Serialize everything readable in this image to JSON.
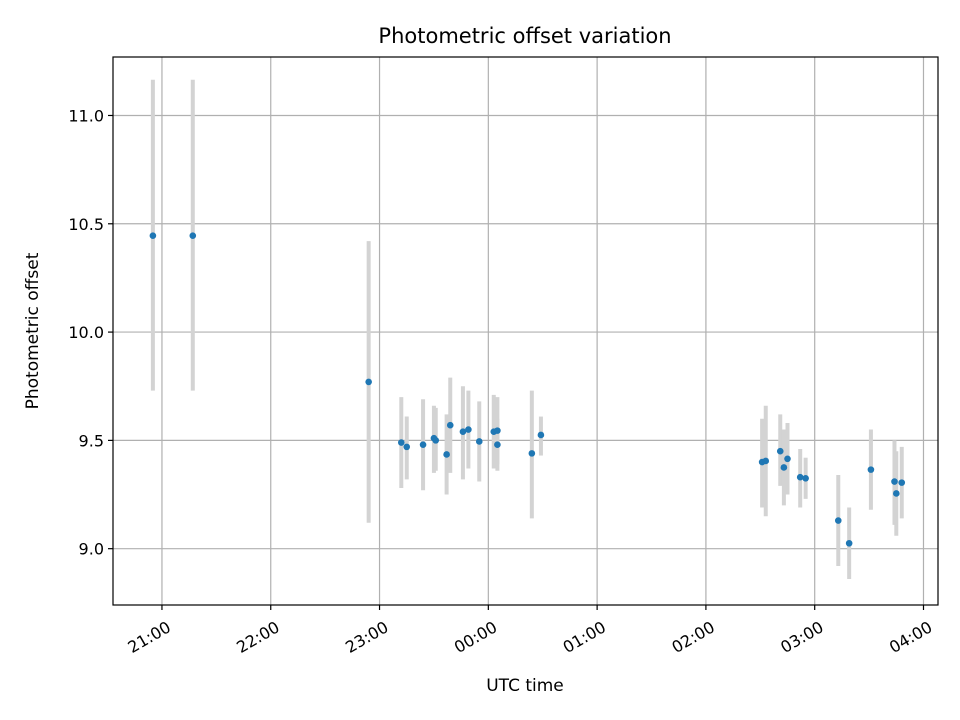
{
  "chart_data": {
    "type": "scatter",
    "title": "Photometric offset variation",
    "xlabel": "UTC time",
    "ylabel": "Photometric offset",
    "x_unit": "hours",
    "xlim": [
      "20:33",
      "04:08"
    ],
    "ylim": [
      8.74,
      11.27
    ],
    "grid": true,
    "x_ticks": [
      {
        "value": "21:00",
        "label": "21:00"
      },
      {
        "value": "22:00",
        "label": "22:00"
      },
      {
        "value": "23:00",
        "label": "23:00"
      },
      {
        "value": "00:00",
        "label": "00:00"
      },
      {
        "value": "01:00",
        "label": "01:00"
      },
      {
        "value": "02:00",
        "label": "02:00"
      },
      {
        "value": "03:00",
        "label": "03:00"
      },
      {
        "value": "04:00",
        "label": "04:00"
      }
    ],
    "y_ticks": [
      {
        "value": 9.0,
        "label": "9.0"
      },
      {
        "value": 9.5,
        "label": "9.5"
      },
      {
        "value": 10.0,
        "label": "10.0"
      },
      {
        "value": 10.5,
        "label": "10.5"
      },
      {
        "value": 11.0,
        "label": "11.0"
      }
    ],
    "colors": {
      "points": "#1f77b4",
      "error_bars": "#d3d3d3",
      "grid": "#b0b0b0"
    },
    "points": [
      {
        "x": "20:55",
        "y": 10.445,
        "lo": 9.73,
        "hi": 11.165
      },
      {
        "x": "21:17",
        "y": 10.445,
        "lo": 9.73,
        "hi": 11.165
      },
      {
        "x": "22:54",
        "y": 9.77,
        "lo": 9.12,
        "hi": 10.42
      },
      {
        "x": "23:12",
        "y": 9.49,
        "lo": 9.28,
        "hi": 9.7
      },
      {
        "x": "23:15",
        "y": 9.47,
        "lo": 9.32,
        "hi": 9.61
      },
      {
        "x": "23:24",
        "y": 9.48,
        "lo": 9.27,
        "hi": 9.69
      },
      {
        "x": "23:30",
        "y": 9.51,
        "lo": 9.35,
        "hi": 9.66
      },
      {
        "x": "23:31",
        "y": 9.5,
        "lo": 9.36,
        "hi": 9.65
      },
      {
        "x": "23:37",
        "y": 9.435,
        "lo": 9.25,
        "hi": 9.62
      },
      {
        "x": "23:39",
        "y": 9.57,
        "lo": 9.35,
        "hi": 9.79
      },
      {
        "x": "23:46",
        "y": 9.54,
        "lo": 9.32,
        "hi": 9.75
      },
      {
        "x": "23:49",
        "y": 9.55,
        "lo": 9.37,
        "hi": 9.73
      },
      {
        "x": "23:55",
        "y": 9.495,
        "lo": 9.31,
        "hi": 9.68
      },
      {
        "x": "00:03",
        "y": 9.54,
        "lo": 9.37,
        "hi": 9.71
      },
      {
        "x": "00:05",
        "y": 9.545,
        "lo": 9.39,
        "hi": 9.7
      },
      {
        "x": "00:05",
        "y": 9.48,
        "lo": 9.36,
        "hi": 9.6
      },
      {
        "x": "00:24",
        "y": 9.44,
        "lo": 9.14,
        "hi": 9.73
      },
      {
        "x": "00:29",
        "y": 9.525,
        "lo": 9.43,
        "hi": 9.61
      },
      {
        "x": "02:31",
        "y": 9.4,
        "lo": 9.19,
        "hi": 9.6
      },
      {
        "x": "02:33",
        "y": 9.405,
        "lo": 9.15,
        "hi": 9.66
      },
      {
        "x": "02:41",
        "y": 9.45,
        "lo": 9.29,
        "hi": 9.62
      },
      {
        "x": "02:43",
        "y": 9.375,
        "lo": 9.2,
        "hi": 9.55
      },
      {
        "x": "02:45",
        "y": 9.415,
        "lo": 9.25,
        "hi": 9.58
      },
      {
        "x": "02:52",
        "y": 9.33,
        "lo": 9.19,
        "hi": 9.46
      },
      {
        "x": "02:55",
        "y": 9.325,
        "lo": 9.23,
        "hi": 9.42
      },
      {
        "x": "03:13",
        "y": 9.13,
        "lo": 8.92,
        "hi": 9.34
      },
      {
        "x": "03:19",
        "y": 9.025,
        "lo": 8.86,
        "hi": 9.19
      },
      {
        "x": "03:31",
        "y": 9.365,
        "lo": 9.18,
        "hi": 9.55
      },
      {
        "x": "03:44",
        "y": 9.31,
        "lo": 9.11,
        "hi": 9.5
      },
      {
        "x": "03:45",
        "y": 9.255,
        "lo": 9.06,
        "hi": 9.45
      },
      {
        "x": "03:48",
        "y": 9.305,
        "lo": 9.14,
        "hi": 9.47
      }
    ]
  }
}
